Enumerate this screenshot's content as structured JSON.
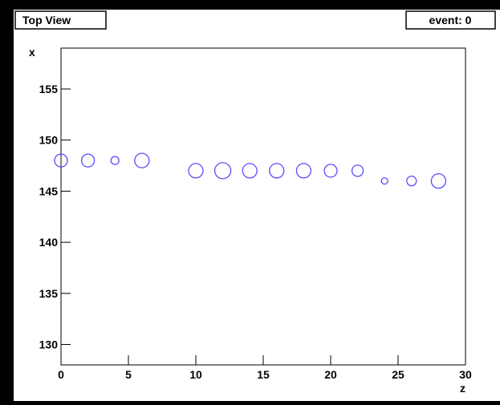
{
  "chart_data": {
    "type": "scatter",
    "title": "Top View",
    "annotation": "event: 0",
    "x_label": "z",
    "y_label": "x",
    "x": [
      0,
      2,
      4,
      6,
      10,
      12,
      14,
      16,
      18,
      20,
      22,
      24,
      26,
      28
    ],
    "series": [
      {
        "color": "#5a4dff",
        "values": [
          148,
          148,
          148,
          148,
          147,
          147,
          147,
          147,
          147,
          147,
          147,
          146,
          146,
          146
        ],
        "sizes": [
          8,
          8,
          5,
          9,
          9,
          10,
          9,
          9,
          9,
          8,
          7,
          4,
          6,
          9
        ]
      }
    ],
    "xlim": [
      0,
      30
    ],
    "xticks": [
      0,
      5,
      10,
      15,
      20,
      25,
      30
    ],
    "ylim": [
      128,
      159
    ],
    "yticks": [
      130,
      135,
      140,
      145,
      150,
      155
    ]
  }
}
